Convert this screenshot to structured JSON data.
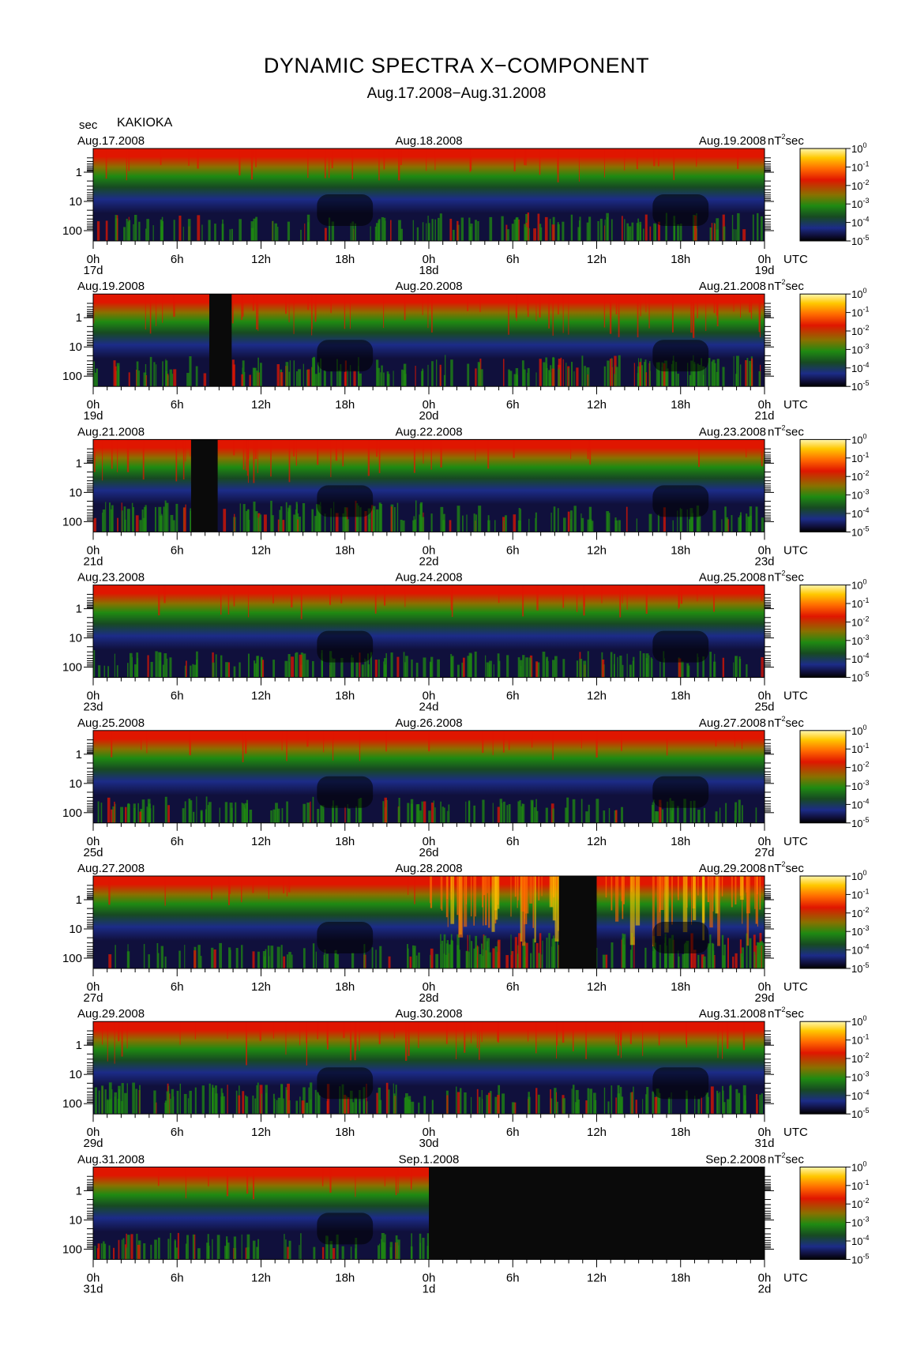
{
  "title": "DYNAMIC SPECTRA X−COMPONENT",
  "subtitle": "Aug.17.2008−Aug.31.2008",
  "period_unit": "sec",
  "station": "KAKIOKA",
  "power_unit": "nT",
  "power_unit_exp": "2",
  "power_unit_suffix": "sec",
  "colors": {
    "scale": [
      "#000000",
      "#10103c",
      "#1c2c88",
      "#174a22",
      "#1f8a12",
      "#8a7000",
      "#e01600",
      "#ff6a00",
      "#ffc800",
      "#fff7b0"
    ],
    "no_data": "#0a0a0a"
  },
  "chart_data": {
    "type": "heatmap",
    "x_unit": "UTC",
    "hour_ticks": [
      "0h",
      "6h",
      "12h",
      "18h",
      "0h",
      "6h",
      "12h",
      "18h",
      "0h"
    ],
    "y_ticks": [
      "1",
      "10",
      "100"
    ],
    "y_label": "sec",
    "color_scale": {
      "label": "nT²sec",
      "ticks": [
        {
          "base": "10",
          "exp": "0"
        },
        {
          "base": "10",
          "exp": "-1"
        },
        {
          "base": "10",
          "exp": "-2"
        },
        {
          "base": "10",
          "exp": "-3"
        },
        {
          "base": "10",
          "exp": "-4"
        },
        {
          "base": "10",
          "exp": "-5"
        }
      ]
    },
    "panels": [
      {
        "date_left": "Aug.17.2008",
        "date_mid": "Aug.18.2008",
        "date_right": "Aug.19.2008",
        "days": [
          "17d",
          "18d",
          "19d"
        ],
        "activity": [
          0.35,
          0.45,
          0.7
        ],
        "gaps": []
      },
      {
        "date_left": "Aug.19.2008",
        "date_mid": "Aug.20.2008",
        "date_right": "Aug.21.2008",
        "days": [
          "19d",
          "20d",
          "21d"
        ],
        "activity": [
          0.55,
          0.6,
          0.4
        ],
        "gaps": [
          [
            8.3,
            9.9
          ]
        ]
      },
      {
        "date_left": "Aug.21.2008",
        "date_mid": "Aug.22.2008",
        "date_right": "Aug.23.2008",
        "days": [
          "21d",
          "22d",
          "23d"
        ],
        "activity": [
          0.6,
          0.35,
          0.3
        ],
        "gaps": [
          [
            7.0,
            8.9
          ]
        ]
      },
      {
        "date_left": "Aug.23.2008",
        "date_mid": "Aug.24.2008",
        "date_right": "Aug.25.2008",
        "days": [
          "23d",
          "24d",
          "25d"
        ],
        "activity": [
          0.4,
          0.35,
          0.35
        ],
        "gaps": []
      },
      {
        "date_left": "Aug.25.2008",
        "date_mid": "Aug.26.2008",
        "date_right": "Aug.27.2008",
        "days": [
          "25d",
          "26d",
          "27d"
        ],
        "activity": [
          0.35,
          0.3,
          0.3
        ],
        "gaps": []
      },
      {
        "date_left": "Aug.27.2008",
        "date_mid": "Aug.28.2008",
        "date_right": "Aug.29.2008",
        "days": [
          "27d",
          "28d",
          "29d"
        ],
        "activity": [
          0.3,
          0.8,
          0.95
        ],
        "gaps": [
          [
            33.3,
            36.0
          ]
        ]
      },
      {
        "date_left": "Aug.29.2008",
        "date_mid": "Aug.30.2008",
        "date_right": "Aug.31.2008",
        "days": [
          "29d",
          "30d",
          "31d"
        ],
        "activity": [
          0.6,
          0.5,
          0.35
        ],
        "gaps": []
      },
      {
        "date_left": "Aug.31.2008",
        "date_mid": "Sep.1.2008",
        "date_right": "Sep.2.2008",
        "days": [
          "31d",
          "1d",
          "2d"
        ],
        "activity": [
          0.35,
          0.0,
          0.0
        ],
        "gaps": [
          [
            24.0,
            48.0
          ]
        ]
      }
    ]
  }
}
